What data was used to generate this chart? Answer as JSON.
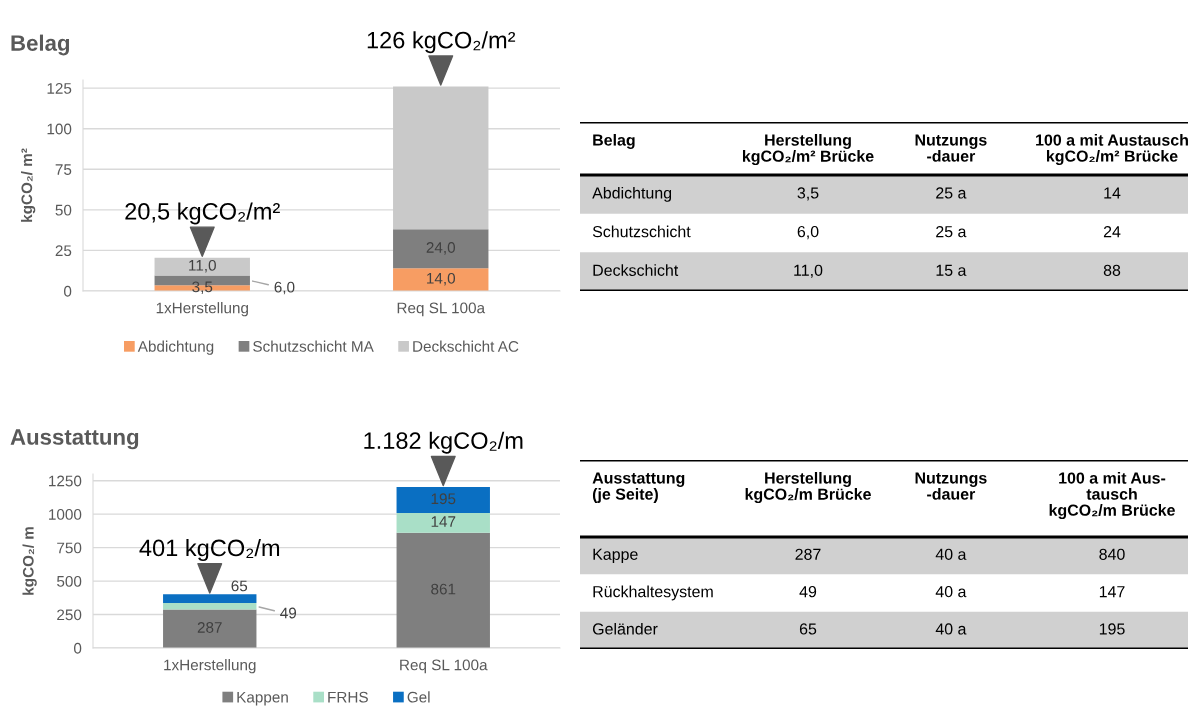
{
  "chart_data": [
    {
      "type": "bar",
      "title": "Belag",
      "ylabel": "kgCO₂/ m²",
      "stacked": true,
      "categories": [
        "1xHerstellung",
        "Req SL 100a"
      ],
      "series": [
        {
          "name": "Abdichtung",
          "color": "#f79d63",
          "values": [
            3.5,
            14
          ],
          "value_labels": [
            "3,5",
            "14,0"
          ]
        },
        {
          "name": "Schutzschicht MA",
          "color": "#7f7f7f",
          "values": [
            6.0,
            24
          ],
          "value_labels": [
            "6,0",
            "24,0"
          ]
        },
        {
          "name": "Deckschicht AC",
          "color": "#c9c9c9",
          "values": [
            11.0,
            88
          ],
          "value_labels": [
            "11,0",
            null
          ]
        }
      ],
      "ylim": [
        0,
        130
      ],
      "yticks": [
        0,
        25,
        50,
        75,
        100,
        125
      ],
      "grid": "y",
      "legend": "bottom",
      "annotations": [
        {
          "text": "20,5 kgCO₂/m²",
          "x": "1xHerstellung",
          "y": 20.5
        },
        {
          "text": "126 kgCO₂/m²",
          "x": "Req SL 100a",
          "y": 126
        }
      ]
    },
    {
      "type": "other",
      "title": "Belag",
      "categories": [
        "Herstellung\nkgCO₂/m² Brücke",
        "Nutzungs\n-dauer",
        "100 a mit Austausch\nkgCO₂/m² Brücke"
      ],
      "y_categories": [
        "Abdichtung",
        "Schutzschicht",
        "Deckschicht"
      ],
      "cell_labels": [
        [
          "3,5",
          "25 a",
          "14"
        ],
        [
          "6,0",
          "25 a",
          "24"
        ],
        [
          "11,0",
          "15 a",
          "88"
        ]
      ]
    },
    {
      "type": "bar",
      "title": "Ausstattung",
      "ylabel": "kgCO₂/ m",
      "stacked": true,
      "categories": [
        "1xHerstellung",
        "Req SL 100a"
      ],
      "series": [
        {
          "name": "Kappen",
          "color": "#7f7f7f",
          "values": [
            287,
            861
          ],
          "value_labels": [
            "287",
            "861"
          ]
        },
        {
          "name": "FRHS",
          "color": "#a9dfc7",
          "values": [
            49,
            147
          ],
          "value_labels": [
            "49",
            "147"
          ]
        },
        {
          "name": "Gel",
          "color": "#0a6fc2",
          "values": [
            65,
            195
          ],
          "value_labels": [
            "65",
            "195"
          ]
        }
      ],
      "ylim": [
        0,
        1300
      ],
      "yticks": [
        0,
        250,
        500,
        750,
        1000,
        1250
      ],
      "grid": "y",
      "legend": "bottom",
      "annotations": [
        {
          "text": "401 kgCO₂/m",
          "x": "1xHerstellung",
          "y": 401
        },
        {
          "text": "1.182 kgCO₂/m",
          "x": "Req SL 100a",
          "y": 1203
        }
      ]
    },
    {
      "type": "other",
      "title": "Ausstattung\n(je Seite)",
      "categories": [
        "Herstellung\nkgCO₂/m Brücke",
        "Nutzungs\n-dauer",
        "100 a mit Aus-\ntausch\nkgCO₂/m Brücke"
      ],
      "y_categories": [
        "Kappe",
        "Rückhaltesystem",
        "Geländer"
      ],
      "cell_labels": [
        [
          "287",
          "40 a",
          "840"
        ],
        [
          "49",
          "40 a",
          "147"
        ],
        [
          "65",
          "40 a",
          "195"
        ]
      ]
    }
  ]
}
